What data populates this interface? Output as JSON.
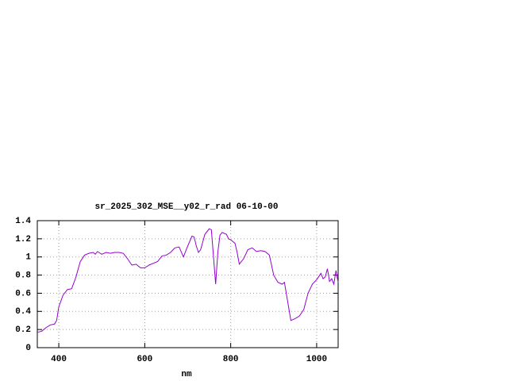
{
  "chart_data": {
    "type": "line",
    "title": "sr_2025_302_MSE__y02_r_rad 06-10-00",
    "x_label": "nm",
    "x": [
      350,
      360,
      370,
      380,
      390,
      395,
      400,
      410,
      420,
      430,
      440,
      450,
      460,
      470,
      480,
      485,
      490,
      500,
      510,
      520,
      530,
      540,
      550,
      560,
      570,
      580,
      590,
      600,
      610,
      620,
      630,
      640,
      650,
      660,
      670,
      680,
      690,
      700,
      710,
      715,
      720,
      725,
      730,
      740,
      750,
      755,
      760,
      765,
      770,
      775,
      780,
      790,
      795,
      800,
      810,
      815,
      820,
      830,
      840,
      850,
      860,
      870,
      880,
      890,
      900,
      910,
      920,
      925,
      930,
      940,
      950,
      960,
      970,
      980,
      990,
      1000,
      1010,
      1015,
      1020,
      1025,
      1030,
      1035,
      1040,
      1045,
      1050
    ],
    "series": [
      {
        "color": "#9400d3",
        "values": [
          0.17,
          0.18,
          0.22,
          0.25,
          0.26,
          0.3,
          0.45,
          0.58,
          0.64,
          0.65,
          0.78,
          0.95,
          1.02,
          1.04,
          1.05,
          1.03,
          1.06,
          1.03,
          1.05,
          1.04,
          1.05,
          1.05,
          1.04,
          0.98,
          0.91,
          0.92,
          0.88,
          0.88,
          0.91,
          0.93,
          0.95,
          1.01,
          1.02,
          1.05,
          1.1,
          1.11,
          1.0,
          1.12,
          1.23,
          1.22,
          1.12,
          1.05,
          1.08,
          1.25,
          1.31,
          1.3,
          1.0,
          0.7,
          1.05,
          1.24,
          1.27,
          1.25,
          1.2,
          1.19,
          1.15,
          1.05,
          0.92,
          0.98,
          1.08,
          1.1,
          1.06,
          1.07,
          1.06,
          1.02,
          0.8,
          0.72,
          0.7,
          0.72,
          0.58,
          0.3,
          0.32,
          0.35,
          0.42,
          0.6,
          0.7,
          0.75,
          0.82,
          0.76,
          0.78,
          0.87,
          0.73,
          0.76,
          0.7,
          0.85,
          0.72
        ]
      }
    ],
    "xlim": [
      350,
      1050
    ],
    "xticks": [
      400,
      600,
      800,
      1000
    ],
    "ylim": [
      0,
      1.4
    ],
    "yticks": [
      0,
      0.2,
      0.4,
      0.6,
      0.8,
      1,
      1.2,
      1.4
    ],
    "grid": true
  }
}
